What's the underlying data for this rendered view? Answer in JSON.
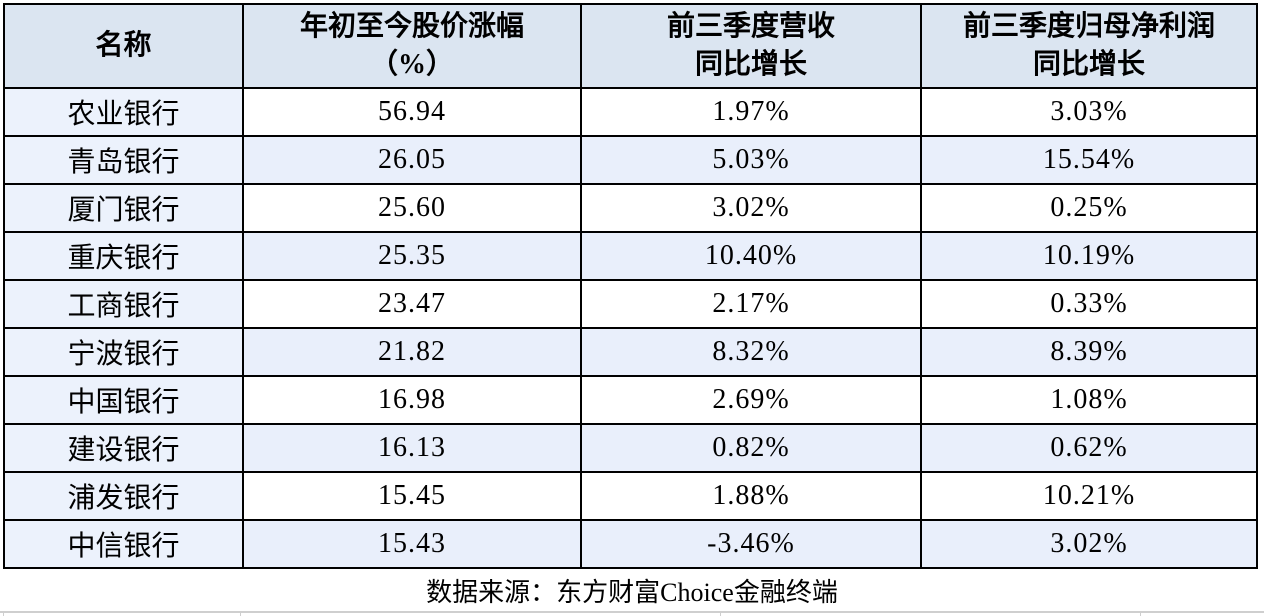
{
  "table": {
    "columns": [
      {
        "id": "name",
        "label_lines": [
          "名称"
        ]
      },
      {
        "id": "ytd_change",
        "label_lines": [
          "年初至今股价涨幅",
          "（%）"
        ]
      },
      {
        "id": "revenue_growth",
        "label_lines": [
          "前三季度营收",
          "同比增长"
        ]
      },
      {
        "id": "profit_growth",
        "label_lines": [
          "前三季度归母净利润",
          "同比增长"
        ]
      }
    ],
    "rows": [
      {
        "name": "农业银行",
        "ytd_change": "56.94",
        "revenue_growth": "1.97%",
        "profit_growth": "3.03%"
      },
      {
        "name": "青岛银行",
        "ytd_change": "26.05",
        "revenue_growth": "5.03%",
        "profit_growth": "15.54%"
      },
      {
        "name": "厦门银行",
        "ytd_change": "25.60",
        "revenue_growth": "3.02%",
        "profit_growth": "0.25%"
      },
      {
        "name": "重庆银行",
        "ytd_change": "25.35",
        "revenue_growth": "10.40%",
        "profit_growth": "10.19%"
      },
      {
        "name": "工商银行",
        "ytd_change": "23.47",
        "revenue_growth": "2.17%",
        "profit_growth": "0.33%"
      },
      {
        "name": "宁波银行",
        "ytd_change": "21.82",
        "revenue_growth": "8.32%",
        "profit_growth": "8.39%"
      },
      {
        "name": "中国银行",
        "ytd_change": "16.98",
        "revenue_growth": "2.69%",
        "profit_growth": "1.08%"
      },
      {
        "name": "建设银行",
        "ytd_change": "16.13",
        "revenue_growth": "0.82%",
        "profit_growth": "0.62%"
      },
      {
        "name": "浦发银行",
        "ytd_change": "15.45",
        "revenue_growth": "1.88%",
        "profit_growth": "10.21%"
      },
      {
        "name": "中信银行",
        "ytd_change": "15.43",
        "revenue_growth": "-3.46%",
        "profit_growth": "3.02%"
      }
    ],
    "footer": "数据来源：东方财富Choice金融终端"
  },
  "chart_data": {
    "type": "table",
    "title": "",
    "columns": [
      "名称",
      "年初至今股价涨幅（%）",
      "前三季度营收同比增长",
      "前三季度归母净利润同比增长"
    ],
    "rows": [
      [
        "农业银行",
        56.94,
        "1.97%",
        "3.03%"
      ],
      [
        "青岛银行",
        26.05,
        "5.03%",
        "15.54%"
      ],
      [
        "厦门银行",
        25.6,
        "3.02%",
        "0.25%"
      ],
      [
        "重庆银行",
        25.35,
        "10.40%",
        "10.19%"
      ],
      [
        "工商银行",
        23.47,
        "2.17%",
        "0.33%"
      ],
      [
        "宁波银行",
        21.82,
        "8.32%",
        "8.39%"
      ],
      [
        "中国银行",
        16.98,
        "2.69%",
        "1.08%"
      ],
      [
        "建设银行",
        16.13,
        "0.82%",
        "0.62%"
      ],
      [
        "浦发银行",
        15.45,
        "1.88%",
        "10.21%"
      ],
      [
        "中信银行",
        15.43,
        "-3.46%",
        "3.02%"
      ]
    ],
    "source_note": "数据来源：东方财富Choice金融终端"
  },
  "colors": {
    "header_bg": "#dbe5f1",
    "stripe_bg": "#e9effb",
    "name_col_bg": "#ecf2fc",
    "border": "#000000",
    "divider": "#cfcfcf"
  }
}
